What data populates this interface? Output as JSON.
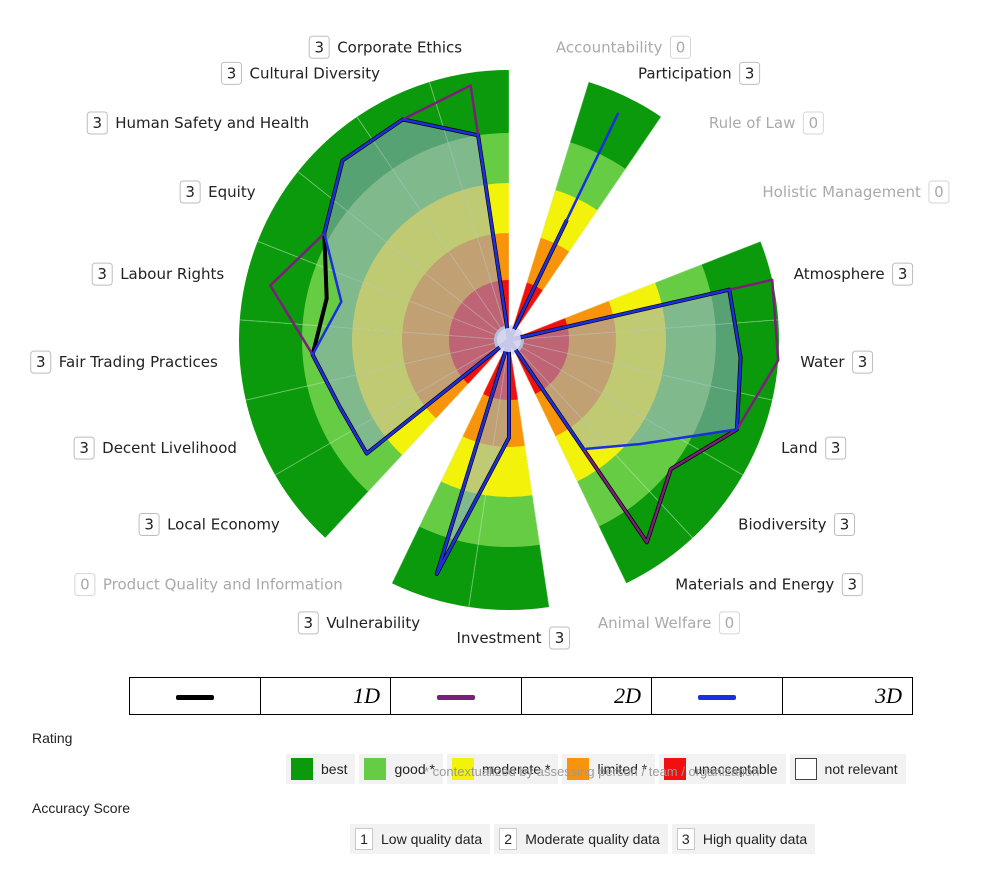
{
  "chart_data": {
    "type": "radar",
    "rings": [
      "unacceptable",
      "limited",
      "moderate",
      "good",
      "best"
    ],
    "axes": [
      {
        "name": "Accountability",
        "score": "0",
        "relevant": false,
        "values": {
          "1D": null,
          "2D": null,
          "3D": null
        }
      },
      {
        "name": "Participation",
        "score": "3",
        "relevant": true,
        "values": {
          "1D": 2.5,
          "2D": 2.5,
          "3D": 4.7
        }
      },
      {
        "name": "Rule of Law",
        "score": "0",
        "relevant": false,
        "values": {
          "1D": null,
          "2D": null,
          "3D": null
        }
      },
      {
        "name": "Holistic Management",
        "score": "0",
        "relevant": false,
        "values": {
          "1D": null,
          "2D": null,
          "3D": null
        }
      },
      {
        "name": "Atmosphere",
        "score": "3",
        "relevant": true,
        "values": {
          "1D": 4.3,
          "2D": 5.0,
          "3D": 4.3
        }
      },
      {
        "name": "Water",
        "score": "3",
        "relevant": true,
        "values": {
          "1D": 4.4,
          "2D": 5.0,
          "3D": 4.4
        }
      },
      {
        "name": "Land",
        "score": "3",
        "relevant": true,
        "values": {
          "1D": 4.6,
          "2D": 4.6,
          "3D": 4.6
        }
      },
      {
        "name": "Biodiversity",
        "score": "3",
        "relevant": true,
        "values": {
          "1D": 4.0,
          "2D": 4.0,
          "3D": 3.2
        }
      },
      {
        "name": "Materials and Energy",
        "score": "3",
        "relevant": true,
        "values": {
          "1D": 4.6,
          "2D": 4.6,
          "3D": 2.5
        }
      },
      {
        "name": "Animal Welfare",
        "score": "0",
        "relevant": false,
        "values": {
          "1D": null,
          "2D": null,
          "3D": null
        }
      },
      {
        "name": "Investment",
        "score": "3",
        "relevant": true,
        "values": {
          "1D": 1.8,
          "2D": 1.8,
          "3D": 1.8
        }
      },
      {
        "name": "Vulnerability",
        "score": "3",
        "relevant": true,
        "values": {
          "1D": 4.6,
          "2D": 4.6,
          "3D": 4.6
        }
      },
      {
        "name": "Product Quality and Information",
        "score": "0",
        "relevant": false,
        "values": {
          "1D": null,
          "2D": null,
          "3D": null
        }
      },
      {
        "name": "Local Economy",
        "score": "3",
        "relevant": true,
        "values": {
          "1D": 3.5,
          "2D": 3.5,
          "3D": 3.5
        }
      },
      {
        "name": "Decent Livelihood",
        "score": "3",
        "relevant": true,
        "values": {
          "1D": 3.5,
          "2D": 3.5,
          "3D": 3.5
        }
      },
      {
        "name": "Fair Trading Practices",
        "score": "3",
        "relevant": true,
        "values": {
          "1D": 3.8,
          "2D": 3.8,
          "3D": 3.8
        }
      },
      {
        "name": "Labour Rights",
        "score": "3",
        "relevant": true,
        "values": {
          "1D": 3.6,
          "2D": 4.6,
          "3D": 3.3
        }
      },
      {
        "name": "Equity",
        "score": "3",
        "relevant": true,
        "values": {
          "1D": 4.1,
          "2D": 4.1,
          "3D": 4.1
        }
      },
      {
        "name": "Human Safety and Health",
        "score": "3",
        "relevant": true,
        "values": {
          "1D": 4.6,
          "2D": 4.6,
          "3D": 4.6
        }
      },
      {
        "name": "Cultural Diversity",
        "score": "3",
        "relevant": true,
        "values": {
          "1D": 4.6,
          "2D": 4.6,
          "3D": 4.6
        }
      },
      {
        "name": "Corporate Ethics",
        "score": "3",
        "relevant": true,
        "values": {
          "1D": 4.0,
          "2D": 4.8,
          "3D": 4.0
        }
      }
    ],
    "series": [
      {
        "name": "1D",
        "color": "#000000"
      },
      {
        "name": "2D",
        "color": "#7b1f7b"
      },
      {
        "name": "3D",
        "color": "#1a2fe0"
      }
    ],
    "colors": {
      "best": "#0b9a0b",
      "good": "#66cc44",
      "moderate": "#f2f20a",
      "limited": "#f7940c",
      "unacceptable": "#f01010",
      "center": "#d8d8f0"
    }
  },
  "legend": {
    "rating_title": "Rating",
    "rating_items": [
      {
        "label": "best",
        "color": "#0b9a0b"
      },
      {
        "label": "good *",
        "color": "#66cc44"
      },
      {
        "label": "moderate *",
        "color": "#f2f20a"
      },
      {
        "label": "limited *",
        "color": "#f7940c"
      },
      {
        "label": "unacceptable",
        "color": "#f01010"
      },
      {
        "label": "not relevant",
        "color": "#ffffff"
      }
    ],
    "note": "* contextualized by assessing person / team / organization",
    "accuracy_title": "Accuracy Score",
    "accuracy_items": [
      {
        "num": "1",
        "label": "Low quality data"
      },
      {
        "num": "2",
        "label": "Moderate quality data"
      },
      {
        "num": "3",
        "label": "High quality data"
      }
    ]
  },
  "series_table": {
    "s1": "1D",
    "s2": "2D",
    "s3": "3D"
  }
}
